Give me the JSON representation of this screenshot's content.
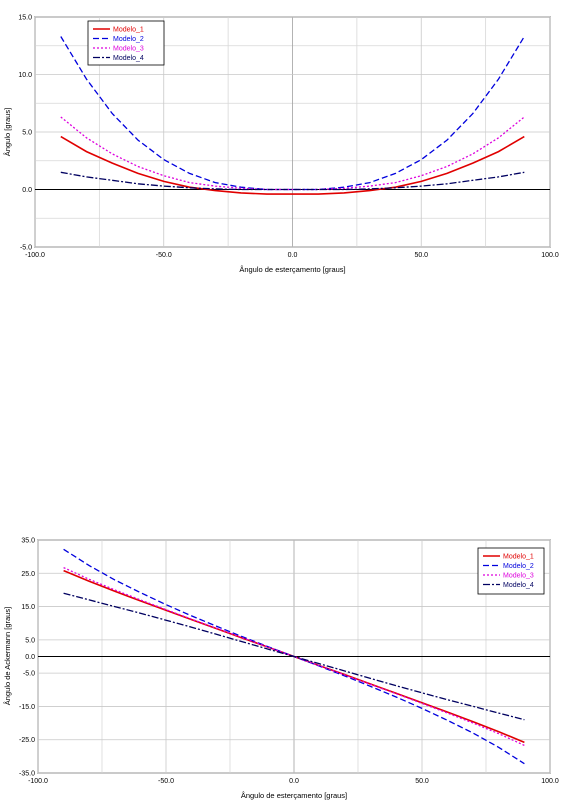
{
  "chart_data": [
    {
      "type": "line",
      "xlabel": "Ângulo de esterçamento [graus]",
      "ylabel": "Ângulo [graus]",
      "xlim": [
        -100,
        100
      ],
      "ylim": [
        -5,
        15
      ],
      "x_ticks": [
        "-100.0",
        "-50.0",
        "0.0",
        "50.0",
        "100.0"
      ],
      "y_ticks": [
        "-5.0",
        "0.0",
        "5.0",
        "10.0",
        "15.0"
      ],
      "grid": true,
      "legend_position": "top-left",
      "x": [
        -90,
        -80,
        -70,
        -60,
        -50,
        -40,
        -30,
        -20,
        -10,
        0,
        10,
        20,
        30,
        40,
        50,
        60,
        70,
        80,
        90
      ],
      "series": [
        {
          "name": "Modelo_1",
          "color": "#e00000",
          "dash": "solid",
          "values": [
            4.6,
            3.3,
            2.3,
            1.4,
            0.7,
            0.2,
            -0.1,
            -0.3,
            -0.4,
            -0.4,
            -0.4,
            -0.3,
            -0.1,
            0.2,
            0.7,
            1.4,
            2.3,
            3.3,
            4.6
          ]
        },
        {
          "name": "Modelo_2",
          "color": "#0000dd",
          "dash": "dashed",
          "values": [
            13.3,
            9.6,
            6.6,
            4.3,
            2.6,
            1.4,
            0.6,
            0.2,
            0.0,
            0.0,
            0.0,
            0.2,
            0.6,
            1.4,
            2.6,
            4.3,
            6.6,
            9.6,
            13.3
          ]
        },
        {
          "name": "Modelo_3",
          "color": "#dd00dd",
          "dash": "dotted",
          "values": [
            6.3,
            4.5,
            3.1,
            2.0,
            1.2,
            0.6,
            0.3,
            0.1,
            0.0,
            0.0,
            0.0,
            0.1,
            0.3,
            0.6,
            1.2,
            2.0,
            3.1,
            4.5,
            6.3
          ]
        },
        {
          "name": "Modelo_4",
          "color": "#000060",
          "dash": "dashdot",
          "values": [
            1.5,
            1.1,
            0.8,
            0.5,
            0.3,
            0.15,
            0.05,
            0.0,
            0.0,
            0.0,
            0.0,
            0.0,
            0.05,
            0.15,
            0.3,
            0.5,
            0.8,
            1.1,
            1.5
          ]
        }
      ]
    },
    {
      "type": "line",
      "xlabel": "Ângulo de esterçamento [graus]",
      "ylabel": "Ângulo de Ackermann [graus]",
      "xlim": [
        -100,
        100
      ],
      "ylim": [
        -35,
        35
      ],
      "x_ticks": [
        "-100.0",
        "-50.0",
        "0.0",
        "50.0",
        "100.0"
      ],
      "y_ticks": [
        "-35.0",
        "-25.0",
        "-15.0",
        "-5.0",
        "0.0",
        "5.0",
        "15.0",
        "25.0",
        "35.0"
      ],
      "grid": true,
      "legend_position": "top-right",
      "x": [
        -90,
        -80,
        -70,
        -60,
        -50,
        -40,
        -30,
        -20,
        -10,
        0,
        10,
        20,
        30,
        40,
        50,
        60,
        70,
        80,
        90
      ],
      "series": [
        {
          "name": "Modelo_1",
          "color": "#e00000",
          "dash": "solid",
          "values": [
            25.8,
            22.6,
            19.6,
            16.7,
            13.9,
            11.1,
            8.3,
            5.5,
            2.8,
            0.0,
            -2.8,
            -5.5,
            -8.3,
            -11.1,
            -13.9,
            -16.7,
            -19.6,
            -22.6,
            -25.8
          ]
        },
        {
          "name": "Modelo_2",
          "color": "#0000dd",
          "dash": "dashed",
          "values": [
            32.2,
            27.3,
            23.0,
            19.2,
            15.6,
            12.2,
            9.0,
            5.9,
            2.9,
            0.0,
            -2.9,
            -5.9,
            -9.0,
            -12.2,
            -15.6,
            -19.2,
            -23.0,
            -27.3,
            -32.2
          ]
        },
        {
          "name": "Modelo_3",
          "color": "#dd00dd",
          "dash": "dotted",
          "values": [
            26.7,
            23.2,
            20.0,
            17.0,
            14.1,
            11.2,
            8.4,
            5.6,
            2.8,
            0.0,
            -2.8,
            -5.6,
            -8.4,
            -11.2,
            -14.1,
            -17.0,
            -20.0,
            -23.2,
            -26.7
          ]
        },
        {
          "name": "Modelo_4",
          "color": "#000060",
          "dash": "dashdot",
          "values": [
            19.0,
            17.0,
            15.0,
            13.0,
            10.9,
            8.8,
            6.6,
            4.4,
            2.2,
            0.0,
            -2.2,
            -4.4,
            -6.6,
            -8.8,
            -10.9,
            -13.0,
            -15.0,
            -17.0,
            -19.0
          ]
        }
      ]
    }
  ]
}
